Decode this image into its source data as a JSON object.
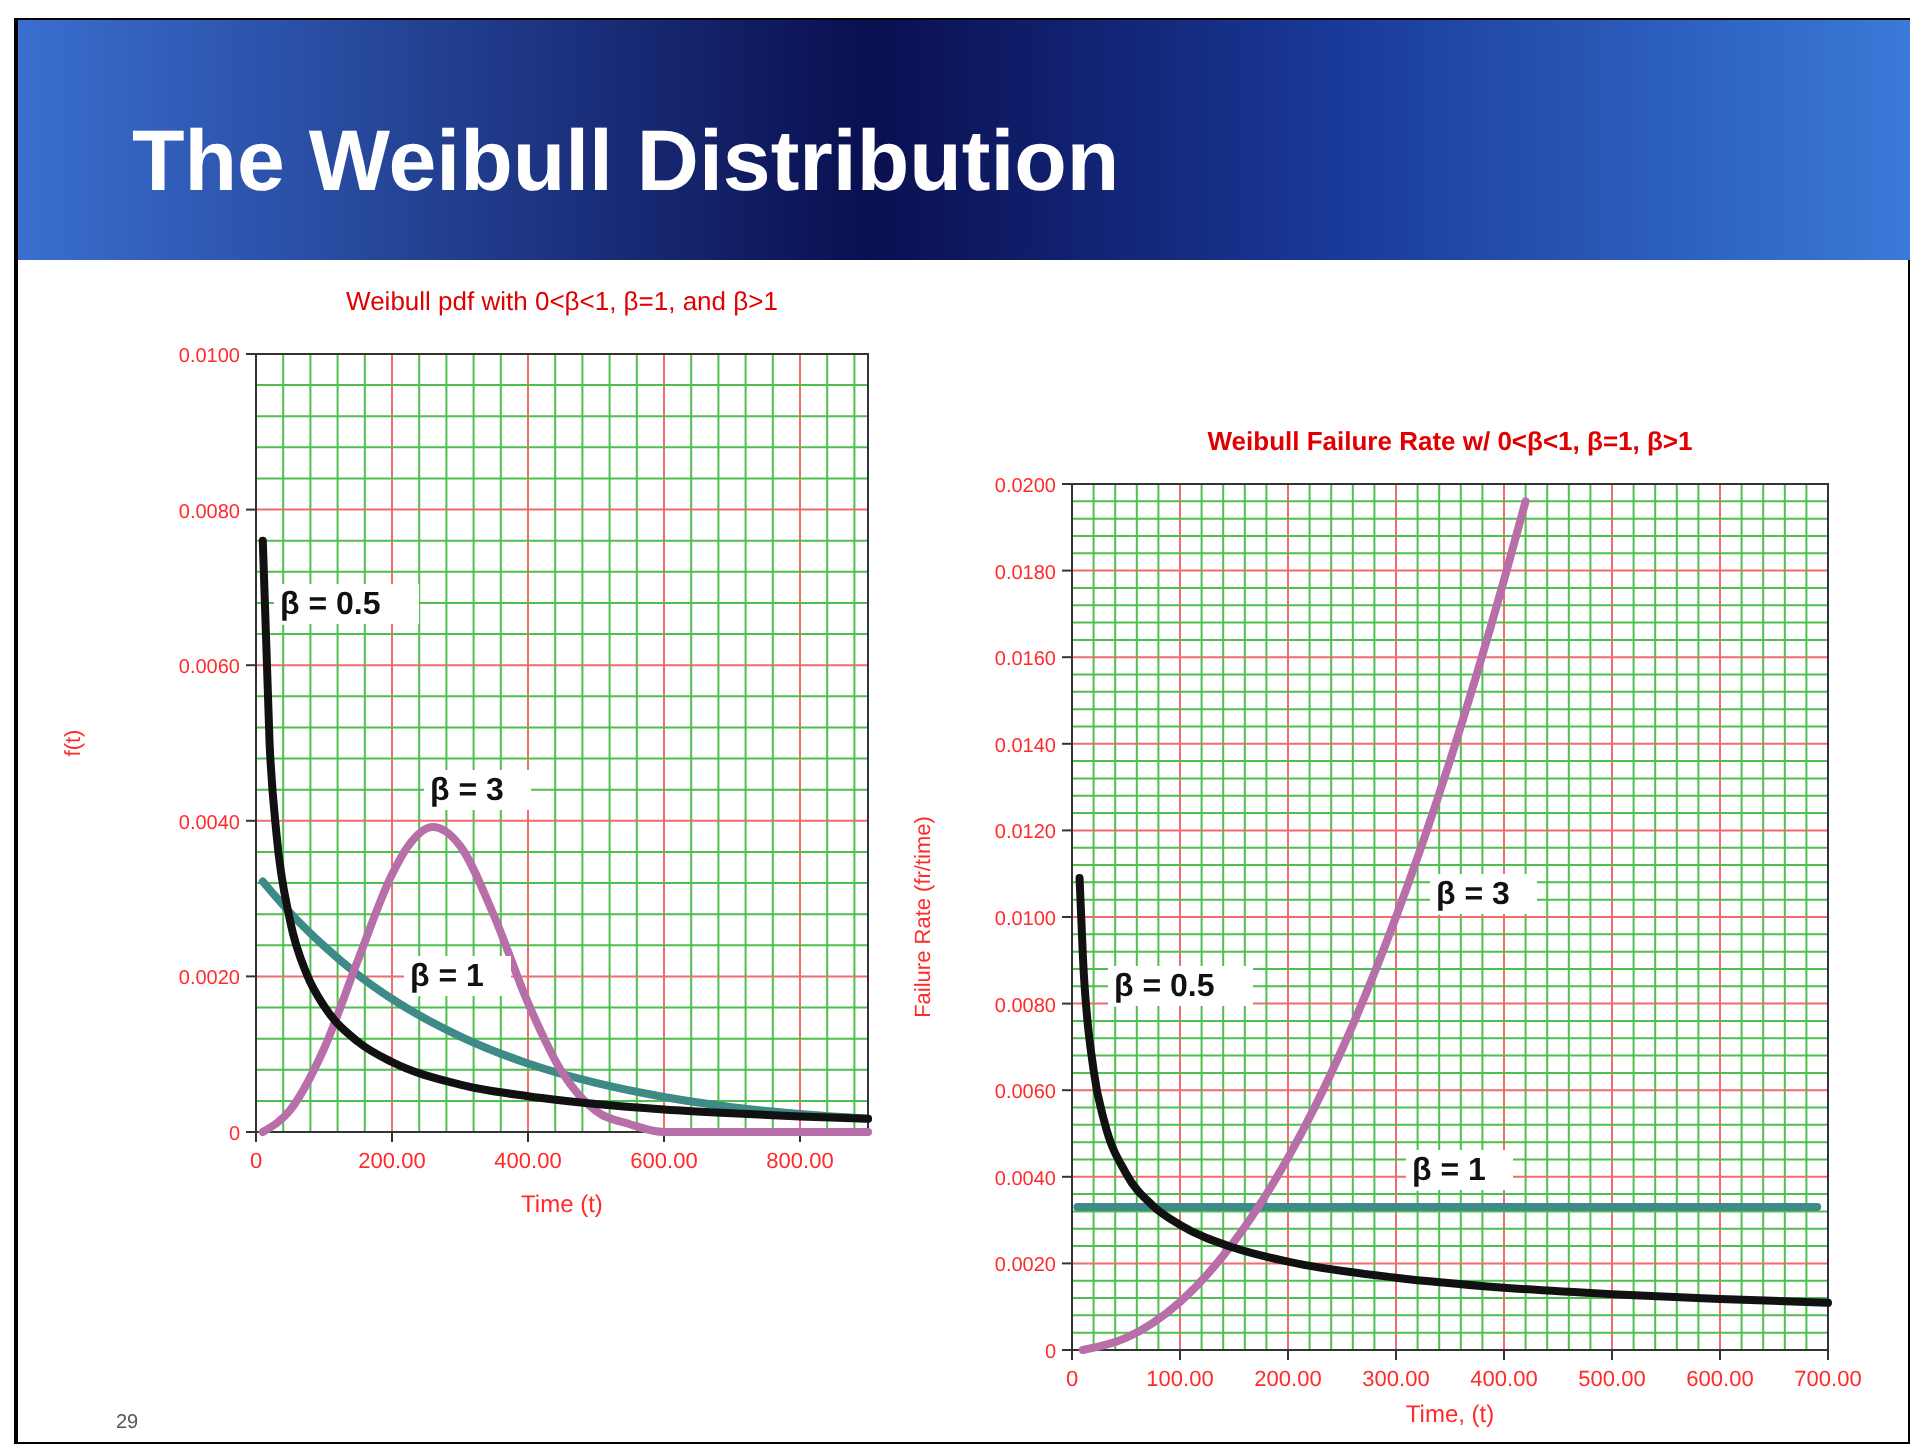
{
  "chart_data": [
    {
      "type": "line",
      "title": "Weibull pdf with 0<β<1, β=1, and β>1",
      "xlabel": "Time (t)",
      "ylabel": "f(t)",
      "grid": true,
      "xlim": [
        0,
        900
      ],
      "ylim": [
        0,
        0.01
      ],
      "xticks": [
        0,
        {
          "value": 200,
          "label": "200.00"
        },
        {
          "value": 400,
          "label": "400.00"
        },
        {
          "value": 600,
          "label": "600.00"
        },
        {
          "value": 800,
          "label": "800.00"
        },
        {
          "value": 40,
          "label": null
        },
        {
          "value": 80,
          "label": null
        },
        {
          "value": 120,
          "label": null
        },
        {
          "value": 160,
          "label": null
        },
        {
          "value": 240,
          "label": null
        },
        {
          "value": 280,
          "label": null
        },
        {
          "value": 320,
          "label": null
        },
        {
          "value": 360,
          "label": null
        },
        {
          "value": 440,
          "label": null
        },
        {
          "value": 480,
          "label": null
        },
        {
          "value": 520,
          "label": null
        },
        {
          "value": 560,
          "label": null
        },
        {
          "value": 640,
          "label": null
        },
        {
          "value": 680,
          "label": null
        },
        {
          "value": 720,
          "label": null
        },
        {
          "value": 760,
          "label": null
        },
        {
          "value": 840,
          "label": null
        },
        {
          "value": 880,
          "label": null
        }
      ],
      "yticks": [
        0,
        {
          "value": 0.002,
          "label": "0.0020"
        },
        {
          "value": 0.004,
          "label": "0.0040"
        },
        {
          "value": 0.006,
          "label": "0.0060"
        },
        {
          "value": 0.008,
          "label": "0.0080"
        },
        {
          "value": 0.01,
          "label": "0.0100"
        },
        {
          "value": 0.0004,
          "label": null
        },
        {
          "value": 0.0008,
          "label": null
        },
        {
          "value": 0.0012,
          "label": null
        },
        {
          "value": 0.0016,
          "label": null
        },
        {
          "value": 0.0024,
          "label": null
        },
        {
          "value": 0.0028,
          "label": null
        },
        {
          "value": 0.0032,
          "label": null
        },
        {
          "value": 0.0036,
          "label": null
        },
        {
          "value": 0.0044,
          "label": null
        },
        {
          "value": 0.0048,
          "label": null
        },
        {
          "value": 0.0052,
          "label": null
        },
        {
          "value": 0.0056,
          "label": null
        },
        {
          "value": 0.0064,
          "label": null
        },
        {
          "value": 0.0068,
          "label": null
        },
        {
          "value": 0.0072,
          "label": null
        },
        {
          "value": 0.0076,
          "label": null
        },
        {
          "value": 0.0084,
          "label": null
        },
        {
          "value": 0.0088,
          "label": null
        },
        {
          "value": 0.0092,
          "label": null
        },
        {
          "value": 0.0096,
          "label": null
        }
      ],
      "series": [
        {
          "name": "β = 1",
          "color": "#3d8a86",
          "x": [
            10,
            50,
            100,
            150,
            200,
            300,
            400,
            500,
            600,
            700,
            800,
            900
          ],
          "values": [
            0.00322,
            0.00282,
            0.00239,
            0.00202,
            0.00171,
            0.00123,
            0.00088,
            0.00063,
            0.00045,
            0.00032,
            0.00023,
            0.00017
          ]
        },
        {
          "name": "β = 3",
          "color": "#b86ea8",
          "x": [
            10,
            50,
            100,
            150,
            200,
            225,
            260,
            300,
            350,
            400,
            450,
            500,
            550,
            600,
            700,
            900
          ],
          "values": [
            0,
            0.00028,
            0.00107,
            0.00221,
            0.00331,
            0.00369,
            0.00392,
            0.00368,
            0.00278,
            0.00166,
            0.00077,
            0.00027,
            0.0001,
            0,
            0,
            0
          ]
        },
        {
          "name": "β = 0.5",
          "color": "#111111",
          "x": [
            10,
            20,
            30,
            50,
            75,
            100,
            150,
            200,
            300,
            400,
            500,
            600,
            700,
            800,
            900
          ],
          "values": [
            0.0076,
            0.00499,
            0.00384,
            0.00272,
            0.00202,
            0.00162,
            0.00116,
            0.0009,
            0.00061,
            0.00046,
            0.00036,
            0.00029,
            0.00024,
            0.0002,
            0.00017
          ]
        }
      ],
      "annotations": [
        "The Weibull Distribution",
        "29"
      ]
    },
    {
      "type": "line",
      "title": "Weibull Failure Rate w/ 0<β<1, β=1, β>1",
      "xlabel": "Time, (t)",
      "ylabel": "Failure Rate (fr/time)",
      "grid": true,
      "xlim": [
        0,
        700
      ],
      "ylim": [
        0,
        0.02
      ],
      "xticks": [
        0,
        {
          "value": 100,
          "label": "100.00"
        },
        {
          "value": 200,
          "label": "200.00"
        },
        {
          "value": 300,
          "label": "300.00"
        },
        {
          "value": 400,
          "label": "400.00"
        },
        {
          "value": 500,
          "label": "500.00"
        },
        {
          "value": 600,
          "label": "600.00"
        },
        {
          "value": 700,
          "label": "700.00"
        },
        {
          "value": 20,
          "label": null
        },
        {
          "value": 40,
          "label": null
        },
        {
          "value": 60,
          "label": null
        },
        {
          "value": 80,
          "label": null
        },
        {
          "value": 120,
          "label": null
        },
        {
          "value": 140,
          "label": null
        },
        {
          "value": 160,
          "label": null
        },
        {
          "value": 180,
          "label": null
        },
        {
          "value": 220,
          "label": null
        },
        {
          "value": 240,
          "label": null
        },
        {
          "value": 260,
          "label": null
        },
        {
          "value": 280,
          "label": null
        },
        {
          "value": 320,
          "label": null
        },
        {
          "value": 340,
          "label": null
        },
        {
          "value": 360,
          "label": null
        },
        {
          "value": 380,
          "label": null
        },
        {
          "value": 420,
          "label": null
        },
        {
          "value": 440,
          "label": null
        },
        {
          "value": 460,
          "label": null
        },
        {
          "value": 480,
          "label": null
        },
        {
          "value": 520,
          "label": null
        },
        {
          "value": 540,
          "label": null
        },
        {
          "value": 560,
          "label": null
        },
        {
          "value": 580,
          "label": null
        },
        {
          "value": 620,
          "label": null
        },
        {
          "value": 640,
          "label": null
        },
        {
          "value": 660,
          "label": null
        },
        {
          "value": 680,
          "label": null
        }
      ],
      "yticks": [
        0,
        {
          "value": 0.002,
          "label": "0.0020"
        },
        {
          "value": 0.004,
          "label": "0.0040"
        },
        {
          "value": 0.006,
          "label": "0.0060"
        },
        {
          "value": 0.008,
          "label": "0.0080"
        },
        {
          "value": 0.01,
          "label": "0.0100"
        },
        {
          "value": 0.012,
          "label": "0.0120"
        },
        {
          "value": 0.014,
          "label": "0.0140"
        },
        {
          "value": 0.016,
          "label": "0.0160"
        },
        {
          "value": 0.018,
          "label": "0.0180"
        },
        {
          "value": 0.02,
          "label": "0.0200"
        },
        {
          "value": 0.0004,
          "label": null
        },
        {
          "value": 0.0008,
          "label": null
        },
        {
          "value": 0.0012,
          "label": null
        },
        {
          "value": 0.0016,
          "label": null
        },
        {
          "value": 0.0024,
          "label": null
        },
        {
          "value": 0.0028,
          "label": null
        },
        {
          "value": 0.0032,
          "label": null
        },
        {
          "value": 0.0036,
          "label": null
        },
        {
          "value": 0.0044,
          "label": null
        },
        {
          "value": 0.0048,
          "label": null
        },
        {
          "value": 0.0052,
          "label": null
        },
        {
          "value": 0.0056,
          "label": null
        },
        {
          "value": 0.0064,
          "label": null
        },
        {
          "value": 0.0068,
          "label": null
        },
        {
          "value": 0.0072,
          "label": null
        },
        {
          "value": 0.0076,
          "label": null
        },
        {
          "value": 0.0084,
          "label": null
        },
        {
          "value": 0.0088,
          "label": null
        },
        {
          "value": 0.0092,
          "label": null
        },
        {
          "value": 0.0096,
          "label": null
        },
        {
          "value": 0.0104,
          "label": null
        },
        {
          "value": 0.0108,
          "label": null
        },
        {
          "value": 0.0112,
          "label": null
        },
        {
          "value": 0.0116,
          "label": null
        },
        {
          "value": 0.0124,
          "label": null
        },
        {
          "value": 0.0128,
          "label": null
        },
        {
          "value": 0.0132,
          "label": null
        },
        {
          "value": 0.0136,
          "label": null
        },
        {
          "value": 0.0144,
          "label": null
        },
        {
          "value": 0.0148,
          "label": null
        },
        {
          "value": 0.0152,
          "label": null
        },
        {
          "value": 0.0156,
          "label": null
        },
        {
          "value": 0.0164,
          "label": null
        },
        {
          "value": 0.0168,
          "label": null
        },
        {
          "value": 0.0172,
          "label": null
        },
        {
          "value": 0.0176,
          "label": null
        },
        {
          "value": 0.0184,
          "label": null
        },
        {
          "value": 0.0188,
          "label": null
        },
        {
          "value": 0.0192,
          "label": null
        },
        {
          "value": 0.0196,
          "label": null
        }
      ],
      "series": [
        {
          "name": "β = 1",
          "color": "#3d8a86",
          "x": [
            5,
            690
          ],
          "values": [
            0.0033,
            0.0033
          ]
        },
        {
          "name": "β = 3",
          "color": "#b86ea8",
          "x": [
            10,
            50,
            100,
            150,
            200,
            250,
            300,
            350,
            400,
            420
          ],
          "values": [
            0,
            0.00028,
            0.00111,
            0.0025,
            0.00444,
            0.00694,
            0.01,
            0.01361,
            0.01778,
            0.0196
          ]
        },
        {
          "name": "β = 0.5",
          "color": "#111111",
          "x": [
            7,
            10,
            20,
            30,
            50,
            75,
            100,
            150,
            200,
            300,
            400,
            500,
            600,
            700
          ],
          "values": [
            0.0109,
            0.00913,
            0.00646,
            0.00527,
            0.00408,
            0.00333,
            0.00289,
            0.00236,
            0.00204,
            0.00167,
            0.00144,
            0.00129,
            0.00118,
            0.00109
          ]
        }
      ]
    }
  ]
}
